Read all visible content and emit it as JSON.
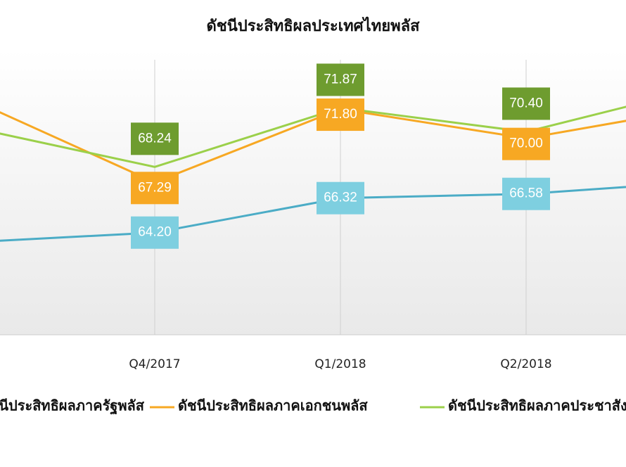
{
  "chart_data": {
    "type": "line",
    "title": "ดัชนีประสิทธิผลประเทศไทยพลัส",
    "categories": [
      null,
      "Q4/2017",
      "Q1/2018",
      "Q2/2018",
      null
    ],
    "series": [
      {
        "name": "ดัชนีประสิทธิผลภาครัฐพลัส",
        "color": "#4bacc6",
        "label_color": "#7ecfe0",
        "values": [
          63.6,
          64.2,
          66.32,
          66.58,
          67.37
        ],
        "value_labels": [
          null,
          "64.20",
          "66.32",
          "66.58",
          null
        ]
      },
      {
        "name": "ดัชนีประสิทธิผลภาคเอกชนพลัส",
        "color": "#f7a823",
        "label_color": "#f7a823",
        "values": [
          72.46,
          67.29,
          71.8,
          70.0,
          72.0
        ],
        "value_labels": [
          null,
          "67.29",
          "71.80",
          "70.00",
          null
        ]
      },
      {
        "name": "ดัชนีประสิทธิผลภาคประชาสังคมพลัส",
        "color": "#9bd04a",
        "label_color": "#6e9c2f",
        "values": [
          70.7,
          68.24,
          71.87,
          70.4,
          73.26
        ],
        "value_labels": [
          null,
          "68.24",
          "71.87",
          "70.40",
          null
        ]
      }
    ],
    "ylim": [
      58,
      76
    ],
    "grid": true
  }
}
